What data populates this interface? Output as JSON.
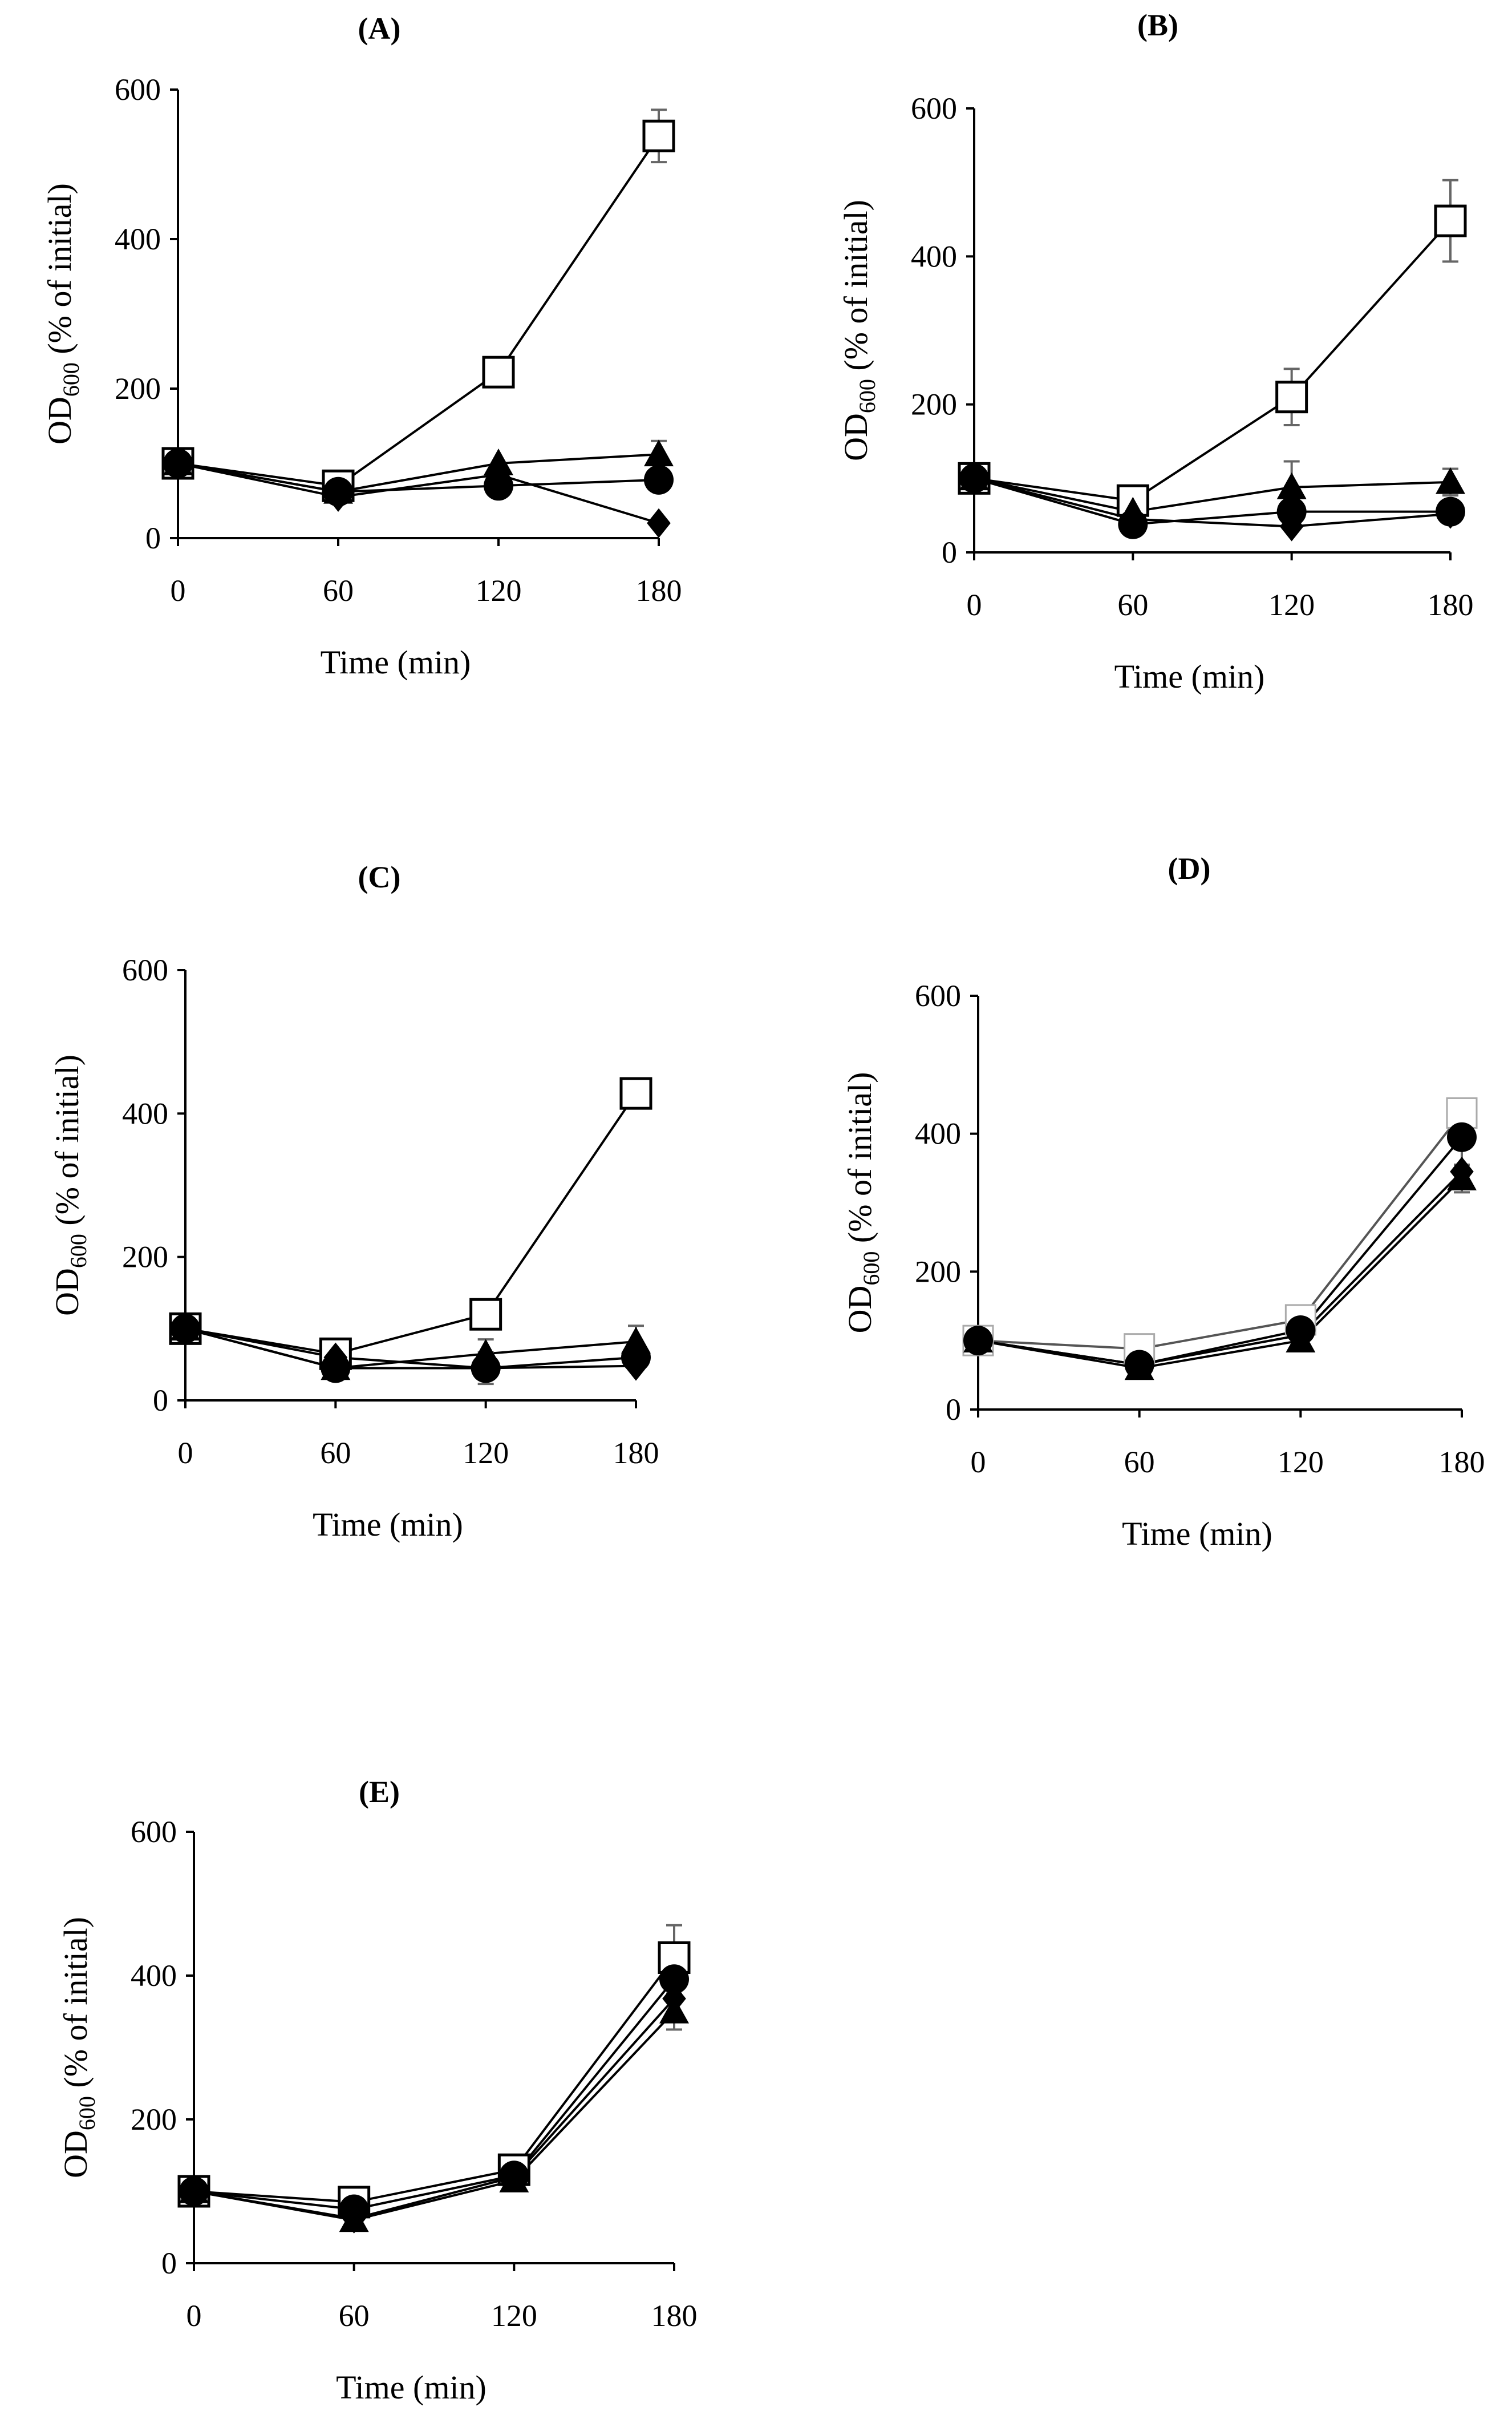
{
  "chart_data": [
    {
      "type": "line",
      "title": "(A)",
      "xlabel": "Time (min)",
      "ylabel": {
        "prefix": "OD",
        "subscript": "600",
        "suffix": " (% of initial)"
      },
      "x": [
        0,
        60,
        120,
        180
      ],
      "xticks": [
        "0",
        "60",
        "120",
        "180"
      ],
      "yticks": [
        "0",
        "200",
        "400",
        "600"
      ],
      "xlim": [
        0,
        180
      ],
      "ylim": [
        0,
        600
      ],
      "series": [
        {
          "name": "open square",
          "marker": "square-open",
          "values": [
            100,
            70,
            222,
            538
          ],
          "errors": [
            0,
            0,
            12,
            35
          ]
        },
        {
          "name": "triangle",
          "marker": "triangle",
          "values": [
            100,
            62,
            100,
            112
          ],
          "errors": [
            0,
            0,
            0,
            18
          ]
        },
        {
          "name": "circle",
          "marker": "circle",
          "values": [
            100,
            62,
            70,
            78
          ],
          "errors": [
            0,
            0,
            0,
            0
          ]
        },
        {
          "name": "diamond",
          "marker": "diamond",
          "values": [
            100,
            55,
            85,
            20
          ],
          "errors": [
            0,
            0,
            0,
            0
          ]
        }
      ]
    },
    {
      "type": "line",
      "title": "(B)",
      "xlabel": "Time (min)",
      "ylabel": {
        "prefix": "OD",
        "subscript": "600",
        "suffix": " (% of initial)"
      },
      "x": [
        0,
        60,
        120,
        180
      ],
      "xticks": [
        "0",
        "60",
        "120",
        "180"
      ],
      "yticks": [
        "0",
        "200",
        "400",
        "600"
      ],
      "xlim": [
        0,
        180
      ],
      "ylim": [
        0,
        600
      ],
      "series": [
        {
          "name": "open square",
          "marker": "square-open",
          "values": [
            100,
            70,
            210,
            448
          ],
          "errors": [
            0,
            0,
            38,
            55
          ]
        },
        {
          "name": "triangle",
          "marker": "triangle",
          "values": [
            100,
            55,
            88,
            95
          ],
          "errors": [
            0,
            0,
            35,
            18
          ]
        },
        {
          "name": "circle",
          "marker": "circle",
          "values": [
            100,
            38,
            55,
            55
          ],
          "errors": [
            0,
            0,
            0,
            0
          ]
        },
        {
          "name": "diamond",
          "marker": "diamond",
          "values": [
            100,
            45,
            35,
            52
          ],
          "errors": [
            0,
            0,
            0,
            0
          ]
        }
      ]
    },
    {
      "type": "line",
      "title": "(C)",
      "xlabel": "Time (min)",
      "ylabel": {
        "prefix": "OD",
        "subscript": "600",
        "suffix": " (% of initial)"
      },
      "x": [
        0,
        60,
        120,
        180
      ],
      "xticks": [
        "0",
        "60",
        "120",
        "180"
      ],
      "yticks": [
        "0",
        "200",
        "400",
        "600"
      ],
      "xlim": [
        0,
        180
      ],
      "ylim": [
        0,
        600
      ],
      "series": [
        {
          "name": "open square",
          "marker": "square-open",
          "values": [
            100,
            65,
            120,
            428
          ],
          "errors": [
            0,
            0,
            0,
            15
          ]
        },
        {
          "name": "triangle",
          "marker": "triangle",
          "values": [
            100,
            45,
            65,
            82
          ],
          "errors": [
            0,
            0,
            20,
            22
          ]
        },
        {
          "name": "circle",
          "marker": "circle",
          "values": [
            100,
            45,
            45,
            60
          ],
          "errors": [
            0,
            0,
            22,
            0
          ]
        },
        {
          "name": "diamond",
          "marker": "diamond",
          "values": [
            100,
            60,
            45,
            48
          ],
          "errors": [
            0,
            0,
            0,
            0
          ]
        }
      ]
    },
    {
      "type": "line",
      "title": "(D)",
      "xlabel": "Time (min)",
      "ylabel": {
        "prefix": "OD",
        "subscript": "600",
        "suffix": " (% of initial)"
      },
      "x": [
        0,
        60,
        120,
        180
      ],
      "xticks": [
        "0",
        "60",
        "120",
        "180"
      ],
      "yticks": [
        "0",
        "200",
        "400",
        "600"
      ],
      "xlim": [
        0,
        180
      ],
      "ylim": [
        0,
        600
      ],
      "series": [
        {
          "name": "open square",
          "marker": "square-open-gray",
          "values": [
            100,
            88,
            130,
            430
          ],
          "errors": [
            0,
            0,
            0,
            20
          ]
        },
        {
          "name": "triangle",
          "marker": "triangle",
          "values": [
            100,
            60,
            100,
            335
          ],
          "errors": [
            0,
            0,
            0,
            20
          ]
        },
        {
          "name": "diamond",
          "marker": "diamond",
          "values": [
            100,
            65,
            108,
            345
          ],
          "errors": [
            0,
            0,
            0,
            0
          ]
        },
        {
          "name": "circle",
          "marker": "circle",
          "values": [
            100,
            65,
            115,
            395
          ],
          "errors": [
            0,
            0,
            0,
            50
          ]
        }
      ]
    },
    {
      "type": "line",
      "title": "(E)",
      "xlabel": "Time (min)",
      "ylabel": {
        "prefix": "OD",
        "subscript": "600",
        "suffix": " (% of initial)"
      },
      "x": [
        0,
        60,
        120,
        180
      ],
      "xticks": [
        "0",
        "60",
        "120",
        "180"
      ],
      "yticks": [
        "0",
        "200",
        "400",
        "600"
      ],
      "xlim": [
        0,
        180
      ],
      "ylim": [
        0,
        600
      ],
      "series": [
        {
          "name": "open square",
          "marker": "square-open",
          "values": [
            100,
            85,
            130,
            425
          ],
          "errors": [
            0,
            0,
            0,
            45
          ]
        },
        {
          "name": "triangle",
          "marker": "triangle",
          "values": [
            100,
            60,
            115,
            350
          ],
          "errors": [
            0,
            0,
            0,
            25
          ]
        },
        {
          "name": "diamond",
          "marker": "diamond",
          "values": [
            100,
            62,
            120,
            368
          ],
          "errors": [
            0,
            0,
            0,
            0
          ]
        },
        {
          "name": "circle",
          "marker": "circle",
          "values": [
            100,
            75,
            122,
            395
          ],
          "errors": [
            0,
            0,
            0,
            0
          ]
        }
      ]
    }
  ]
}
